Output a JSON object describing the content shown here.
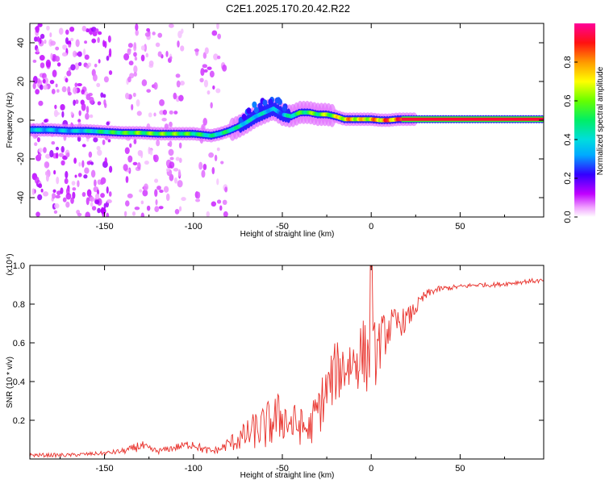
{
  "title": "C2E1.2025.170.20.42.R22",
  "colors": {
    "snr_line": "#e8302a",
    "background": "#ffffff",
    "track_red": "#ee1133",
    "track_green": "#33dd33",
    "track_cyan": "#22ccdd",
    "track_blue": "#3322ee",
    "scatter_purple": "#7a33ff"
  },
  "chart_data": [
    {
      "type": "heatmap",
      "title": "C2E1.2025.170.20.42.R22",
      "xlabel": "Height of straight line (km)",
      "ylabel": "Frequency (Hz)",
      "xlim": [
        -192,
        97
      ],
      "ylim": [
        -50,
        50
      ],
      "x_ticks": [
        -150,
        -100,
        -50,
        0,
        50
      ],
      "x_tick_labels": [
        "-150",
        "-100",
        "-50",
        "0",
        "50"
      ],
      "y_ticks": [
        -40,
        -20,
        0,
        20,
        40
      ],
      "y_tick_labels": [
        "-40",
        "-20",
        "0",
        "20",
        "40"
      ],
      "grid": false,
      "colorbar": {
        "label": "Normalized spectral amplitude",
        "range": [
          0.0,
          1.0
        ],
        "ticks": [
          0.0,
          0.2,
          0.4,
          0.6,
          0.8
        ],
        "tick_labels": [
          "0.0",
          "0.2",
          "0.4",
          "0.6",
          "0.8"
        ],
        "colormap": "rainbow (white-magenta-blue-cyan-green-yellow-orange-red-pink)"
      },
      "dominant_track": {
        "name": "",
        "x": [
          -192,
          -180,
          -170,
          -160,
          -150,
          -140,
          -130,
          -120,
          -110,
          -100,
          -95,
          -90,
          -85,
          -80,
          -75,
          -70,
          -65,
          -60,
          -55,
          -50,
          -45,
          -40,
          -35,
          -30,
          -25,
          -20,
          -15,
          -10,
          -5,
          0,
          5,
          10,
          15,
          20,
          30,
          40,
          50,
          60,
          70,
          80,
          90,
          97
        ],
        "y": [
          -5,
          -5,
          -5.5,
          -5.5,
          -6,
          -6.5,
          -6.5,
          -7,
          -7,
          -7,
          -7.5,
          -8,
          -7,
          -5.5,
          -3.5,
          -1,
          2,
          4,
          6,
          3,
          2,
          4,
          4,
          3,
          3,
          2,
          0.5,
          0.5,
          0.5,
          0.5,
          0,
          0,
          0.5,
          0.5,
          0.5,
          0.5,
          0.5,
          0.5,
          0.5,
          0.5,
          0.5,
          0.5
        ],
        "amplitude": [
          0.45,
          0.4,
          0.4,
          0.45,
          0.55,
          0.6,
          0.65,
          0.65,
          0.65,
          0.6,
          0.55,
          0.5,
          0.5,
          0.55,
          0.5,
          0.45,
          0.45,
          0.45,
          0.4,
          0.35,
          0.55,
          0.6,
          0.65,
          0.65,
          0.7,
          0.75,
          0.85,
          0.85,
          0.8,
          0.85,
          0.9,
          0.95,
          0.95,
          0.95,
          0.95,
          0.95,
          0.95,
          0.95,
          0.95,
          0.95,
          0.95,
          0.95
        ]
      }
    },
    {
      "type": "line",
      "xlabel": "Height of straight line (km)",
      "ylabel": "SNR (10 * v/v)",
      "y_multiplier": "(x10⁴)",
      "xlim": [
        -192,
        97
      ],
      "ylim": [
        0,
        1.0
      ],
      "x_ticks": [
        -150,
        -100,
        -50,
        0,
        50
      ],
      "x_tick_labels": [
        "-150",
        "-100",
        "-50",
        "0",
        "50"
      ],
      "y_ticks": [
        0.2,
        0.4,
        0.6,
        0.8,
        1.0
      ],
      "y_tick_labels": [
        "0.2",
        "0.4",
        "0.6",
        "0.8",
        "1.0"
      ],
      "grid": false,
      "series": [
        {
          "name": "",
          "x": [
            -192,
            -180,
            -170,
            -160,
            -150,
            -140,
            -135,
            -130,
            -125,
            -120,
            -115,
            -110,
            -105,
            -100,
            -95,
            -90,
            -85,
            -80,
            -75,
            -70,
            -65,
            -60,
            -55,
            -50,
            -45,
            -40,
            -35,
            -30,
            -25,
            -20,
            -15,
            -10,
            -5,
            0,
            5,
            10,
            15,
            20,
            25,
            30,
            35,
            40,
            50,
            60,
            70,
            80,
            90,
            97
          ],
          "y": [
            0.02,
            0.02,
            0.02,
            0.025,
            0.03,
            0.04,
            0.05,
            0.07,
            0.05,
            0.04,
            0.05,
            0.06,
            0.07,
            0.08,
            0.05,
            0.04,
            0.05,
            0.08,
            0.1,
            0.12,
            0.15,
            0.16,
            0.2,
            0.22,
            0.18,
            0.17,
            0.15,
            0.25,
            0.35,
            0.45,
            0.48,
            0.5,
            0.55,
            0.5,
            0.6,
            0.68,
            0.7,
            0.72,
            0.78,
            0.84,
            0.87,
            0.88,
            0.89,
            0.9,
            0.9,
            0.91,
            0.92,
            0.92
          ],
          "noise": [
            0.01,
            0.01,
            0.01,
            0.01,
            0.01,
            0.015,
            0.02,
            0.03,
            0.02,
            0.015,
            0.015,
            0.02,
            0.02,
            0.03,
            0.02,
            0.02,
            0.02,
            0.04,
            0.06,
            0.08,
            0.1,
            0.12,
            0.14,
            0.13,
            0.12,
            0.1,
            0.09,
            0.14,
            0.15,
            0.16,
            0.16,
            0.16,
            0.18,
            0.2,
            0.14,
            0.1,
            0.08,
            0.06,
            0.04,
            0.03,
            0.02,
            0.015,
            0.012,
            0.012,
            0.012,
            0.012,
            0.012,
            0.012
          ]
        }
      ]
    }
  ]
}
